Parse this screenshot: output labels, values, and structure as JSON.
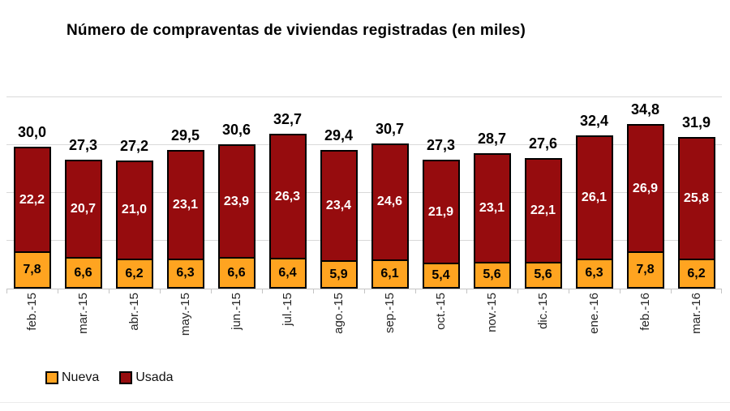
{
  "title": "Número de compraventas de viviendas registradas (en miles)",
  "legend": {
    "items": [
      {
        "label": "Nueva",
        "color": "#FFA420"
      },
      {
        "label": "Usada",
        "color": "#960C0E"
      }
    ]
  },
  "chart_data": {
    "type": "bar",
    "stacked": true,
    "title": "Número de compraventas de viviendas registradas (en miles)",
    "xlabel": "",
    "ylabel": "",
    "ylim": [
      0,
      40
    ],
    "gridline_step": 10,
    "grid": true,
    "y_axis_labels_visible": false,
    "legend_position": "bottom-left",
    "decimal_separator": ",",
    "categories": [
      "feb.-15",
      "mar.-15",
      "abr.-15",
      "may.-15",
      "jun.-15",
      "jul.-15",
      "ago.-15",
      "sep.-15",
      "oct.-15",
      "nov.-15",
      "dic.-15",
      "ene.-16",
      "feb.-16",
      "mar.-16"
    ],
    "series": [
      {
        "name": "Nueva",
        "color": "#FFA420",
        "label_color": "#000000",
        "values": [
          7.8,
          6.6,
          6.2,
          6.3,
          6.6,
          6.4,
          5.9,
          6.1,
          5.4,
          5.6,
          5.6,
          6.3,
          7.8,
          6.2
        ],
        "labels": [
          "7,8",
          "6,6",
          "6,2",
          "6,3",
          "6,6",
          "6,4",
          "5,9",
          "6,1",
          "5,4",
          "5,6",
          "5,6",
          "6,3",
          "7,8",
          "6,2"
        ]
      },
      {
        "name": "Usada",
        "color": "#960C0E",
        "label_color": "#FFFFFF",
        "values": [
          22.2,
          20.7,
          21.0,
          23.1,
          23.9,
          26.3,
          23.4,
          24.6,
          21.9,
          23.1,
          22.1,
          26.1,
          26.9,
          25.8
        ],
        "labels": [
          "22,2",
          "20,7",
          "21,0",
          "23,1",
          "23,9",
          "26,3",
          "23,4",
          "24,6",
          "21,9",
          "23,1",
          "22,1",
          "26,1",
          "26,9",
          "25,8"
        ]
      }
    ],
    "totals": [
      30.0,
      27.3,
      27.2,
      29.5,
      30.6,
      32.7,
      29.4,
      30.7,
      27.3,
      28.7,
      27.6,
      32.4,
      34.8,
      31.9
    ],
    "total_labels": [
      "30,0",
      "27,3",
      "27,2",
      "29,5",
      "30,6",
      "32,7",
      "29,4",
      "30,7",
      "27,3",
      "28,7",
      "27,6",
      "32,4",
      "34,8",
      "31,9"
    ]
  },
  "colors": {
    "grid": "#D9D9D9",
    "axis": "#C4C4C4",
    "bar_border": "#000000",
    "background": "#FFFFFF",
    "total_label": "#000000",
    "x_label": "#262626"
  }
}
